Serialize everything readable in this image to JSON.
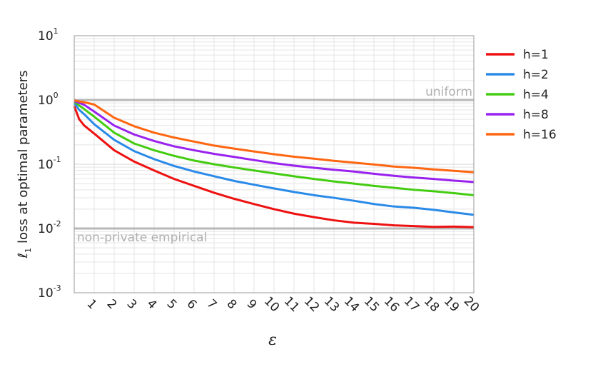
{
  "chart_data": {
    "type": "line",
    "title": "",
    "xlabel": "ε",
    "ylabel": "loss at optimal parameters",
    "ylabel_symbol": "ℓ",
    "ylabel_subscript": "1",
    "yscale": "log",
    "ylim": [
      0.001,
      10
    ],
    "xlim": [
      0,
      20
    ],
    "grid": true,
    "legend_position": "right",
    "x_ticks": [
      1,
      2,
      3,
      4,
      5,
      6,
      7,
      8,
      9,
      10,
      11,
      12,
      13,
      14,
      15,
      16,
      17,
      18,
      19,
      20
    ],
    "y_ticks": [
      {
        "value": 0.001,
        "base": "10",
        "exp": "-3"
      },
      {
        "value": 0.01,
        "base": "10",
        "exp": "-2"
      },
      {
        "value": 0.1,
        "base": "10",
        "exp": "-1"
      },
      {
        "value": 1,
        "base": "10",
        "exp": "0"
      },
      {
        "value": 10,
        "base": "10",
        "exp": "1"
      }
    ],
    "x": [
      0,
      0.25,
      0.5,
      1,
      2,
      3,
      4,
      5,
      6,
      7,
      8,
      9,
      10,
      11,
      12,
      13,
      14,
      15,
      16,
      17,
      18,
      19,
      20
    ],
    "series": [
      {
        "name": "h=1",
        "color": "#ee1111",
        "values": [
          0.8,
          0.5,
          0.4,
          0.3,
          0.165,
          0.11,
          0.08,
          0.059,
          0.046,
          0.036,
          0.029,
          0.024,
          0.02,
          0.017,
          0.015,
          0.0134,
          0.0123,
          0.0118,
          0.0112,
          0.0109,
          0.0106,
          0.0107,
          0.0105
        ]
      },
      {
        "name": "h=2",
        "color": "#2a8ae8",
        "values": [
          0.9,
          0.7,
          0.6,
          0.42,
          0.24,
          0.16,
          0.12,
          0.094,
          0.077,
          0.065,
          0.055,
          0.048,
          0.042,
          0.037,
          0.033,
          0.03,
          0.027,
          0.024,
          0.022,
          0.021,
          0.0195,
          0.0178,
          0.0163
        ]
      },
      {
        "name": "h=4",
        "color": "#44cc11",
        "values": [
          0.95,
          0.82,
          0.72,
          0.55,
          0.31,
          0.21,
          0.165,
          0.135,
          0.114,
          0.1,
          0.089,
          0.08,
          0.072,
          0.065,
          0.059,
          0.054,
          0.05,
          0.046,
          0.043,
          0.04,
          0.038,
          0.0355,
          0.033
        ]
      },
      {
        "name": "h=8",
        "color": "#9922ee",
        "values": [
          0.97,
          0.9,
          0.84,
          0.66,
          0.4,
          0.29,
          0.23,
          0.19,
          0.165,
          0.145,
          0.13,
          0.116,
          0.104,
          0.095,
          0.088,
          0.082,
          0.077,
          0.071,
          0.066,
          0.062,
          0.059,
          0.0555,
          0.053
        ]
      },
      {
        "name": "h=16",
        "color": "#ff6611",
        "values": [
          0.98,
          0.95,
          0.92,
          0.85,
          0.53,
          0.39,
          0.31,
          0.26,
          0.225,
          0.195,
          0.175,
          0.158,
          0.143,
          0.131,
          0.122,
          0.113,
          0.106,
          0.099,
          0.092,
          0.088,
          0.083,
          0.079,
          0.075
        ]
      }
    ],
    "reference_lines": [
      {
        "label": "uniform",
        "value": 1
      },
      {
        "label": "non-private empirical",
        "value": 0.01
      }
    ]
  }
}
